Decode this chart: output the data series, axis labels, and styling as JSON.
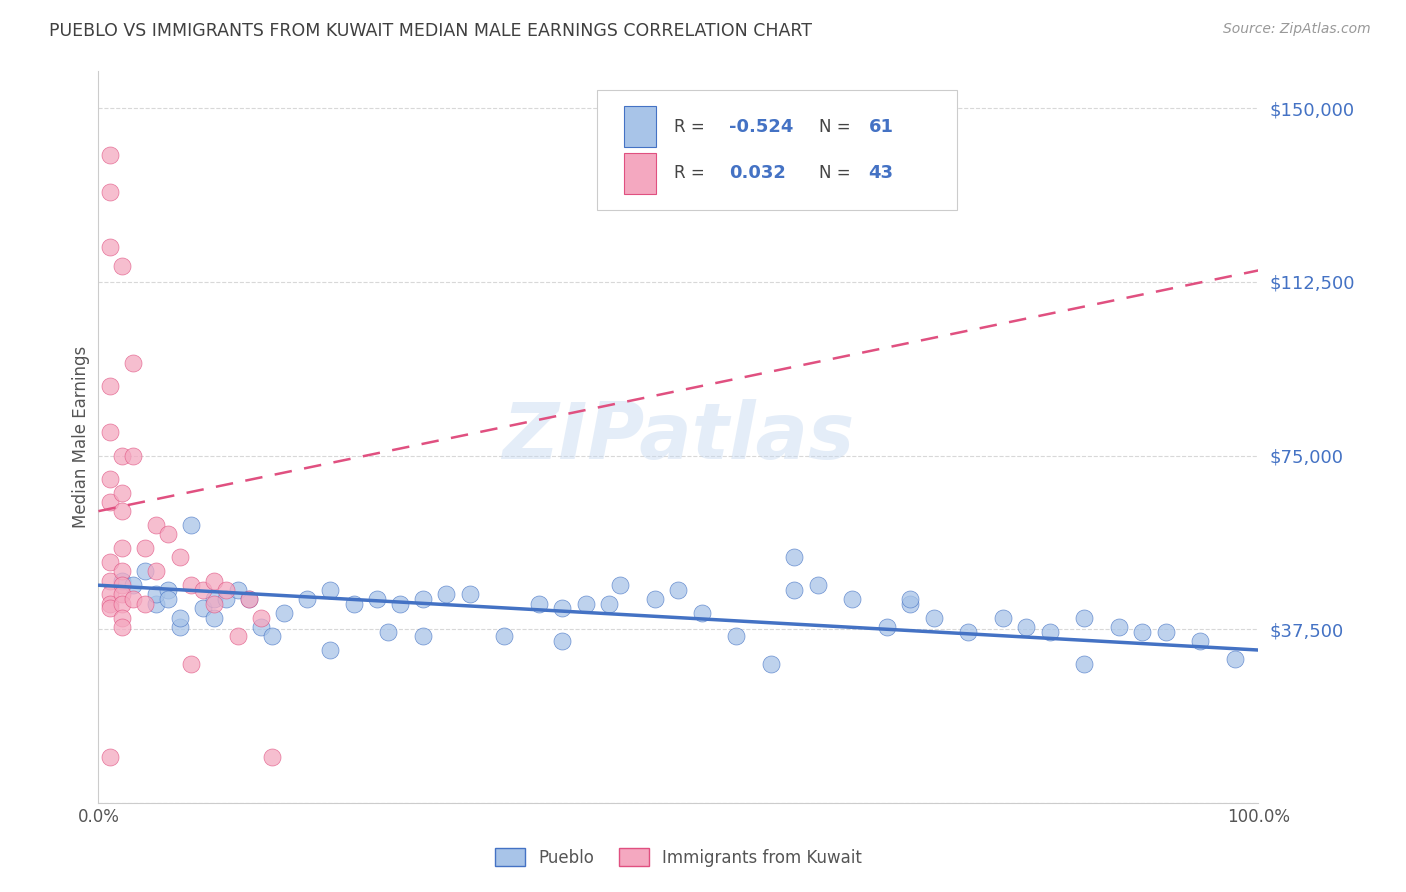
{
  "title": "PUEBLO VS IMMIGRANTS FROM KUWAIT MEDIAN MALE EARNINGS CORRELATION CHART",
  "source": "Source: ZipAtlas.com",
  "ylabel": "Median Male Earnings",
  "watermark": "ZIPatlas",
  "legend_label1": "Pueblo",
  "legend_label2": "Immigrants from Kuwait",
  "r1": -0.524,
  "n1": 61,
  "r2": 0.032,
  "n2": 43,
  "y_ticks": [
    0,
    37500,
    75000,
    112500,
    150000
  ],
  "y_tick_labels": [
    "",
    "$37,500",
    "$75,000",
    "$112,500",
    "$150,000"
  ],
  "xlim": [
    0,
    1.0
  ],
  "ylim": [
    0,
    158000
  ],
  "blue_color": "#a8c4e8",
  "pink_color": "#f4a8c0",
  "line_blue": "#4472c4",
  "line_pink": "#e05080",
  "title_color": "#404040",
  "axis_label_color": "#555555",
  "tick_color": "#4472c4",
  "grid_color": "#d8d8d8",
  "blue_scatter_x": [
    0.02,
    0.03,
    0.04,
    0.05,
    0.05,
    0.06,
    0.06,
    0.07,
    0.07,
    0.08,
    0.09,
    0.1,
    0.1,
    0.11,
    0.12,
    0.13,
    0.14,
    0.15,
    0.16,
    0.18,
    0.2,
    0.2,
    0.22,
    0.24,
    0.25,
    0.26,
    0.28,
    0.28,
    0.3,
    0.32,
    0.35,
    0.38,
    0.4,
    0.4,
    0.42,
    0.44,
    0.45,
    0.48,
    0.5,
    0.52,
    0.55,
    0.58,
    0.6,
    0.6,
    0.62,
    0.65,
    0.68,
    0.7,
    0.7,
    0.72,
    0.75,
    0.78,
    0.8,
    0.82,
    0.85,
    0.85,
    0.88,
    0.9,
    0.92,
    0.95,
    0.98
  ],
  "blue_scatter_y": [
    48000,
    47000,
    50000,
    43000,
    45000,
    46000,
    44000,
    38000,
    40000,
    60000,
    42000,
    44000,
    40000,
    44000,
    46000,
    44000,
    38000,
    36000,
    41000,
    44000,
    46000,
    33000,
    43000,
    44000,
    37000,
    43000,
    44000,
    36000,
    45000,
    45000,
    36000,
    43000,
    42000,
    35000,
    43000,
    43000,
    47000,
    44000,
    46000,
    41000,
    36000,
    30000,
    53000,
    46000,
    47000,
    44000,
    38000,
    43000,
    44000,
    40000,
    37000,
    40000,
    38000,
    37000,
    40000,
    30000,
    38000,
    37000,
    37000,
    35000,
    31000
  ],
  "pink_scatter_x": [
    0.01,
    0.01,
    0.01,
    0.01,
    0.01,
    0.01,
    0.01,
    0.01,
    0.01,
    0.01,
    0.01,
    0.01,
    0.01,
    0.02,
    0.02,
    0.02,
    0.02,
    0.02,
    0.02,
    0.02,
    0.02,
    0.02,
    0.02,
    0.02,
    0.03,
    0.03,
    0.03,
    0.04,
    0.04,
    0.05,
    0.05,
    0.06,
    0.07,
    0.08,
    0.08,
    0.09,
    0.1,
    0.1,
    0.11,
    0.12,
    0.13,
    0.14,
    0.15
  ],
  "pink_scatter_y": [
    140000,
    132000,
    120000,
    90000,
    80000,
    70000,
    65000,
    52000,
    48000,
    45000,
    43000,
    42000,
    10000,
    116000,
    75000,
    67000,
    63000,
    55000,
    50000,
    47000,
    45000,
    43000,
    40000,
    38000,
    95000,
    75000,
    44000,
    55000,
    43000,
    60000,
    50000,
    58000,
    53000,
    47000,
    30000,
    46000,
    48000,
    43000,
    46000,
    36000,
    44000,
    40000,
    10000
  ],
  "blue_line_x0": 0.0,
  "blue_line_x1": 1.0,
  "blue_line_y0": 47000,
  "blue_line_y1": 33000,
  "pink_line_x0": 0.0,
  "pink_line_x1": 1.0,
  "pink_line_y0": 63000,
  "pink_line_y1": 115000
}
